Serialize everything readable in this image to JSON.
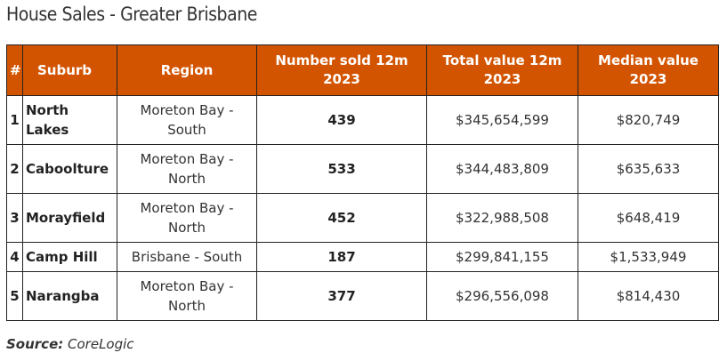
{
  "title": "House Sales - Greater Brisbane",
  "table": {
    "headers": {
      "rank": "#",
      "suburb": "Suburb",
      "region": "Region",
      "sold_line1": "Number sold 12m",
      "sold_line2": "2023",
      "total_line1": "Total value 12m",
      "total_line2": "2023",
      "median_line1": "Median value",
      "median_line2": "2023"
    },
    "rows": [
      {
        "rank": "1",
        "suburb_line1": "North",
        "suburb_line2": "Lakes",
        "region_line1": "Moreton Bay -",
        "region_line2": "South",
        "sold": "439",
        "total": "$345,654,599",
        "median": "$820,749"
      },
      {
        "rank": "2",
        "suburb_line1": "Caboolture",
        "suburb_line2": "",
        "region_line1": "Moreton Bay -",
        "region_line2": "North",
        "sold": "533",
        "total": "$344,483,809",
        "median": "$635,633"
      },
      {
        "rank": "3",
        "suburb_line1": "Morayfield",
        "suburb_line2": "",
        "region_line1": "Moreton Bay -",
        "region_line2": "North",
        "sold": "452",
        "total": "$322,988,508",
        "median": "$648,419"
      },
      {
        "rank": "4",
        "suburb_line1": "Camp Hill",
        "suburb_line2": "",
        "region_line1": "Brisbane - South",
        "region_line2": "",
        "sold": "187",
        "total": "$299,841,155",
        "median": "$1,533,949"
      },
      {
        "rank": "5",
        "suburb_line1": "Narangba",
        "suburb_line2": "",
        "region_line1": "Moreton Bay -",
        "region_line2": "North",
        "sold": "377",
        "total": "$296,556,098",
        "median": "$814,430"
      }
    ]
  },
  "source": {
    "label": "Source:",
    "value": "CoreLogic"
  }
}
